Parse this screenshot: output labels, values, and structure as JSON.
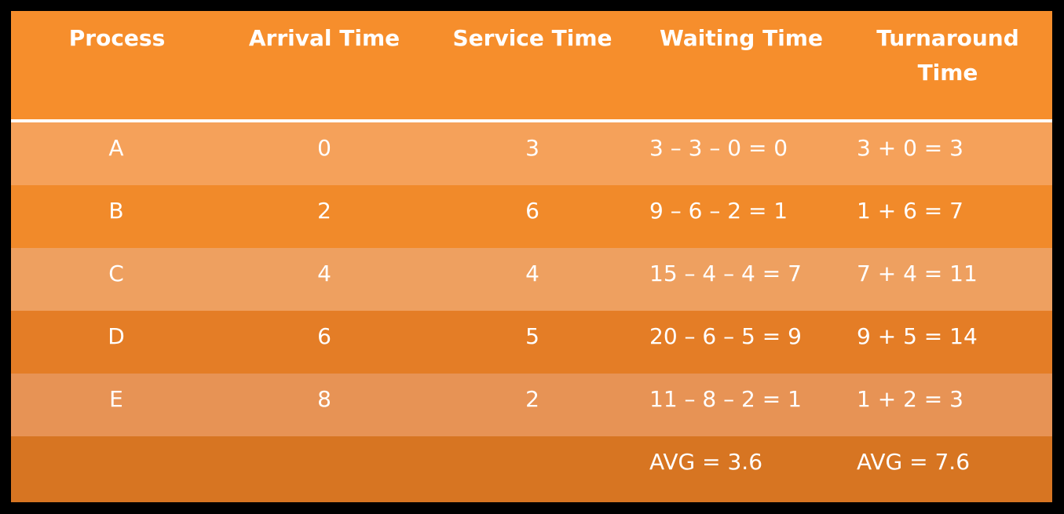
{
  "table": {
    "headers": [
      "Process",
      "Arrival Time",
      "Service Time",
      "Waiting Time",
      "Turnaround\nTime"
    ],
    "header_parts": {
      "turnaround_line1": "Turnaround",
      "turnaround_line2": "Time"
    },
    "rows": [
      {
        "process": "A",
        "arrival": "0",
        "service": "3",
        "waiting": "3 – 3 – 0 = 0",
        "turnaround": "3 + 0 = 3"
      },
      {
        "process": "B",
        "arrival": "2",
        "service": "6",
        "waiting": "9 – 6 – 2 = 1",
        "turnaround": "1 + 6 = 7"
      },
      {
        "process": "C",
        "arrival": "4",
        "service": "4",
        "waiting": "15 – 4 – 4 = 7",
        "turnaround": "7 + 4 = 11"
      },
      {
        "process": "D",
        "arrival": "6",
        "service": "5",
        "waiting": "20 – 6 – 5 = 9",
        "turnaround": "9 + 5 = 14"
      },
      {
        "process": "E",
        "arrival": "8",
        "service": "2",
        "waiting": "11 – 8 – 2 = 1",
        "turnaround": "1 + 2 = 3"
      }
    ],
    "averages": {
      "waiting": "AVG = 3.6",
      "turnaround": "AVG = 7.6"
    }
  },
  "colors": {
    "background": "#000000",
    "header": "#f68e2c",
    "row_a": "#f5a15a",
    "row_b": "#f18a2a",
    "row_c": "#eea060",
    "row_d": "#e47d26",
    "row_e": "#e79355",
    "row_avg": "#d77522",
    "text": "#ffffff"
  }
}
